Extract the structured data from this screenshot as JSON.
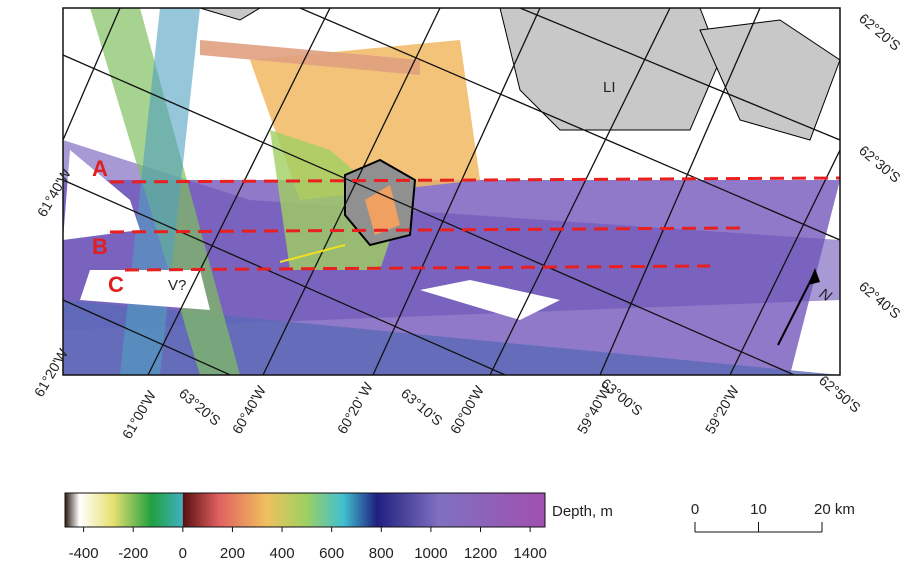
{
  "map": {
    "profiles": [
      "A",
      "B",
      "C"
    ],
    "annotations": {
      "volcano": "V?",
      "island": "LI",
      "north": "N"
    },
    "graticule_labels": [
      "61°40'W",
      "61°20'W",
      "61°00'W",
      "63°20'S",
      "60°40'W",
      "60°20' W",
      "63°10'S",
      "60°00'W",
      "59°40'W",
      "63°00'S",
      "59°20'W",
      "62°50'S",
      "62°20'S",
      "62°30'S",
      "62°40'S"
    ],
    "colorbar": {
      "label": "Depth, m",
      "lim": [
        -475,
        1460
      ],
      "ticks": [
        -400,
        -200,
        0,
        200,
        400,
        600,
        800,
        1000,
        1200,
        1400
      ]
    },
    "scale_bar": {
      "lim": [
        0,
        20
      ],
      "ticks": [
        0,
        10,
        {
          "value": 20,
          "label": "20 km"
        }
      ]
    }
  }
}
